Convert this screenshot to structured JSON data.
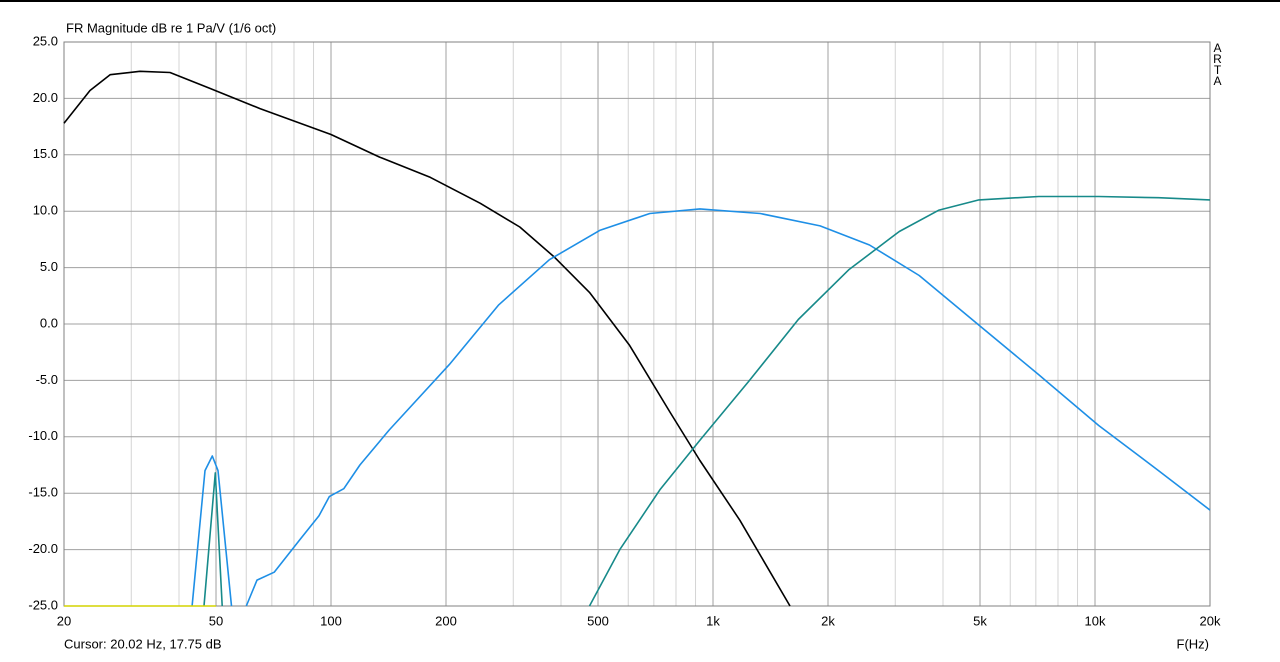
{
  "chart_data": {
    "type": "line",
    "title": "FR Magnitude dB re 1 Pa/V (1/6 oct)",
    "watermark": "ARTA",
    "xlabel": "F(Hz)",
    "cursor": "Cursor: 20.02 Hz, 17.75 dB",
    "xscale": "log",
    "grid": true,
    "xlim": [
      20,
      20000
    ],
    "xticks": [
      20,
      50,
      100,
      200,
      500,
      {
        "value": 1000,
        "label": "1k"
      },
      {
        "value": 2000,
        "label": "2k"
      },
      {
        "value": 5000,
        "label": "5k"
      },
      {
        "value": 10000,
        "label": "10k"
      },
      {
        "value": 20000,
        "label": "20k"
      }
    ],
    "xminor": [
      30,
      40,
      60,
      70,
      80,
      90,
      300,
      400,
      600,
      700,
      800,
      900,
      3000,
      4000,
      6000,
      7000,
      8000,
      9000
    ],
    "ylim": [
      -25,
      25
    ],
    "yticks": [
      {
        "value": 25,
        "label": "25.0"
      },
      {
        "value": 20,
        "label": "20.0"
      },
      {
        "value": 15,
        "label": "15.0"
      },
      {
        "value": 10,
        "label": "10.0"
      },
      {
        "value": 5,
        "label": "5.0"
      },
      {
        "value": 0,
        "label": "0.0"
      },
      {
        "value": -5,
        "label": "-5.0"
      },
      {
        "value": -10,
        "label": "-10.0"
      },
      {
        "value": -15,
        "label": "-15.0"
      },
      {
        "value": -20,
        "label": "-20.0"
      },
      {
        "value": -25,
        "label": "-25.0"
      }
    ],
    "series": [
      {
        "color": "#000000",
        "x": [
          20,
          23.4,
          26.4,
          31.6,
          37.9,
          48.1,
          65.2,
          100,
          134,
          182,
          246,
          312,
          385,
          475,
          605,
          771,
          924,
          1176,
          1591
        ],
        "values": [
          17.8,
          20.7,
          22.1,
          22.4,
          22.3,
          20.9,
          19.1,
          16.8,
          14.8,
          13.0,
          10.7,
          8.6,
          5.9,
          2.8,
          -1.9,
          -7.8,
          -12.1,
          -17.4,
          -25
        ]
      },
      {
        "color": "#1e8fe6",
        "x": [
          60,
          64,
          71,
          83,
          93,
          99,
          108,
          119,
          142,
          204,
          275,
          373,
          505,
          683,
          924,
          1329,
          1907,
          2568,
          3465,
          4966,
          7126,
          10224,
          14660,
          20000
        ],
        "values": [
          -25,
          -22.7,
          -22,
          -19.1,
          -17,
          -15.3,
          -14.6,
          -12.5,
          -9.4,
          -3.6,
          1.7,
          5.7,
          8.3,
          9.8,
          10.2,
          9.8,
          8.7,
          7.0,
          4.3,
          -0.1,
          -4.5,
          -9.0,
          -13,
          -16.5
        ]
      },
      {
        "color": "#178a8a",
        "x": [
          475,
          570,
          726,
          924,
          1246,
          1672,
          2264,
          3073,
          3904,
          4966,
          7126,
          10224,
          14660,
          20000
        ],
        "values": [
          -25,
          -20,
          -14.7,
          -10.3,
          -5,
          0.4,
          4.8,
          8.2,
          10.1,
          11,
          11.3,
          11.3,
          11.2,
          11.0
        ]
      },
      {
        "color": "#1e8fe6",
        "x": [
          43.3,
          46.8,
          48.9,
          50.6,
          54.9
        ],
        "values": [
          -25,
          -13,
          -11.7,
          -13,
          -25
        ]
      },
      {
        "color": "#178a8a",
        "x": [
          46.5,
          49.8,
          51.9
        ],
        "values": [
          -25,
          -13.2,
          -25
        ]
      },
      {
        "color": "#d4d400",
        "x": [
          20,
          50
        ],
        "values": [
          -25,
          -25
        ]
      }
    ]
  }
}
